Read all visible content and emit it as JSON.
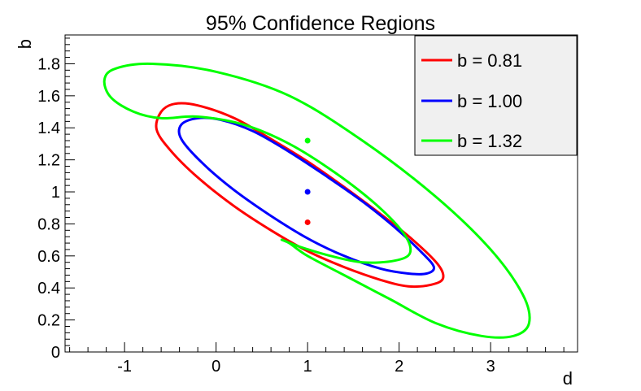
{
  "chart_data": {
    "type": "line",
    "title": "95% Confidence Regions",
    "xlabel": "d",
    "ylabel": "b",
    "xlim": [
      -1.65,
      3.95
    ],
    "ylim": [
      0,
      1.98
    ],
    "x_ticks": [
      -1,
      0,
      1,
      2,
      3
    ],
    "x_tick_labels": [
      "-1",
      "0",
      "1",
      "2",
      "3"
    ],
    "y_ticks": [
      0,
      0.2,
      0.4,
      0.6,
      0.8,
      1,
      1.2,
      1.4,
      1.6,
      1.8
    ],
    "y_tick_labels": [
      "0",
      "0.2",
      "0.4",
      "0.6",
      "0.8",
      "1",
      "1.2",
      "1.4",
      "1.6",
      "1.8"
    ],
    "grid": false,
    "legend_position": "top-right",
    "series": [
      {
        "name": "b = 0.81",
        "color": "#ff0000",
        "best_fit": [
          1.0,
          0.81
        ],
        "contour": [
          [
            -0.45,
            1.55
          ],
          [
            -0.2,
            1.54
          ],
          [
            0.2,
            1.46
          ],
          [
            0.6,
            1.33
          ],
          [
            1.0,
            1.19
          ],
          [
            1.4,
            1.03
          ],
          [
            1.8,
            0.86
          ],
          [
            2.15,
            0.7
          ],
          [
            2.42,
            0.55
          ],
          [
            2.48,
            0.46
          ],
          [
            2.35,
            0.42
          ],
          [
            2.1,
            0.41
          ],
          [
            1.8,
            0.45
          ],
          [
            1.4,
            0.53
          ],
          [
            1.0,
            0.63
          ],
          [
            0.6,
            0.76
          ],
          [
            0.2,
            0.91
          ],
          [
            -0.2,
            1.09
          ],
          [
            -0.5,
            1.26
          ],
          [
            -0.65,
            1.39
          ],
          [
            -0.6,
            1.5
          ],
          [
            -0.45,
            1.55
          ]
        ]
      },
      {
        "name": "b = 1.00",
        "color": "#0000ff",
        "best_fit": [
          1.0,
          1.0
        ],
        "contour": [
          [
            -0.2,
            1.46
          ],
          [
            0.05,
            1.45
          ],
          [
            0.4,
            1.38
          ],
          [
            0.8,
            1.25
          ],
          [
            1.2,
            1.1
          ],
          [
            1.6,
            0.94
          ],
          [
            1.95,
            0.78
          ],
          [
            2.25,
            0.62
          ],
          [
            2.38,
            0.53
          ],
          [
            2.3,
            0.49
          ],
          [
            2.1,
            0.49
          ],
          [
            1.8,
            0.52
          ],
          [
            1.4,
            0.6
          ],
          [
            1.0,
            0.71
          ],
          [
            0.6,
            0.85
          ],
          [
            0.2,
            1.01
          ],
          [
            -0.15,
            1.18
          ],
          [
            -0.38,
            1.33
          ],
          [
            -0.38,
            1.42
          ],
          [
            -0.2,
            1.46
          ]
        ]
      },
      {
        "name": "b = 1.32",
        "color": "#00ff00",
        "best_fit": [
          1.0,
          1.32
        ],
        "contour": [
          [
            -1.1,
            1.77
          ],
          [
            -0.7,
            1.8
          ],
          [
            0.0,
            1.75
          ],
          [
            0.8,
            1.6
          ],
          [
            1.6,
            1.32
          ],
          [
            2.4,
            0.97
          ],
          [
            3.0,
            0.64
          ],
          [
            3.35,
            0.36
          ],
          [
            3.42,
            0.18
          ],
          [
            3.25,
            0.1
          ],
          [
            2.9,
            0.1
          ],
          [
            2.4,
            0.18
          ],
          [
            1.9,
            0.33
          ],
          [
            1.4,
            0.48
          ],
          [
            1.0,
            0.6
          ],
          [
            0.8,
            0.68
          ],
          [
            0.72,
            0.7
          ],
          [
            0.9,
            0.66
          ],
          [
            1.25,
            0.6
          ],
          [
            1.6,
            0.56
          ],
          [
            1.95,
            0.57
          ],
          [
            2.12,
            0.62
          ],
          [
            2.05,
            0.74
          ],
          [
            1.75,
            0.92
          ],
          [
            1.3,
            1.12
          ],
          [
            0.8,
            1.3
          ],
          [
            0.3,
            1.42
          ],
          [
            -0.2,
            1.47
          ],
          [
            -0.6,
            1.46
          ],
          [
            -0.9,
            1.5
          ],
          [
            -1.15,
            1.59
          ],
          [
            -1.22,
            1.7
          ],
          [
            -1.1,
            1.77
          ]
        ]
      }
    ]
  }
}
